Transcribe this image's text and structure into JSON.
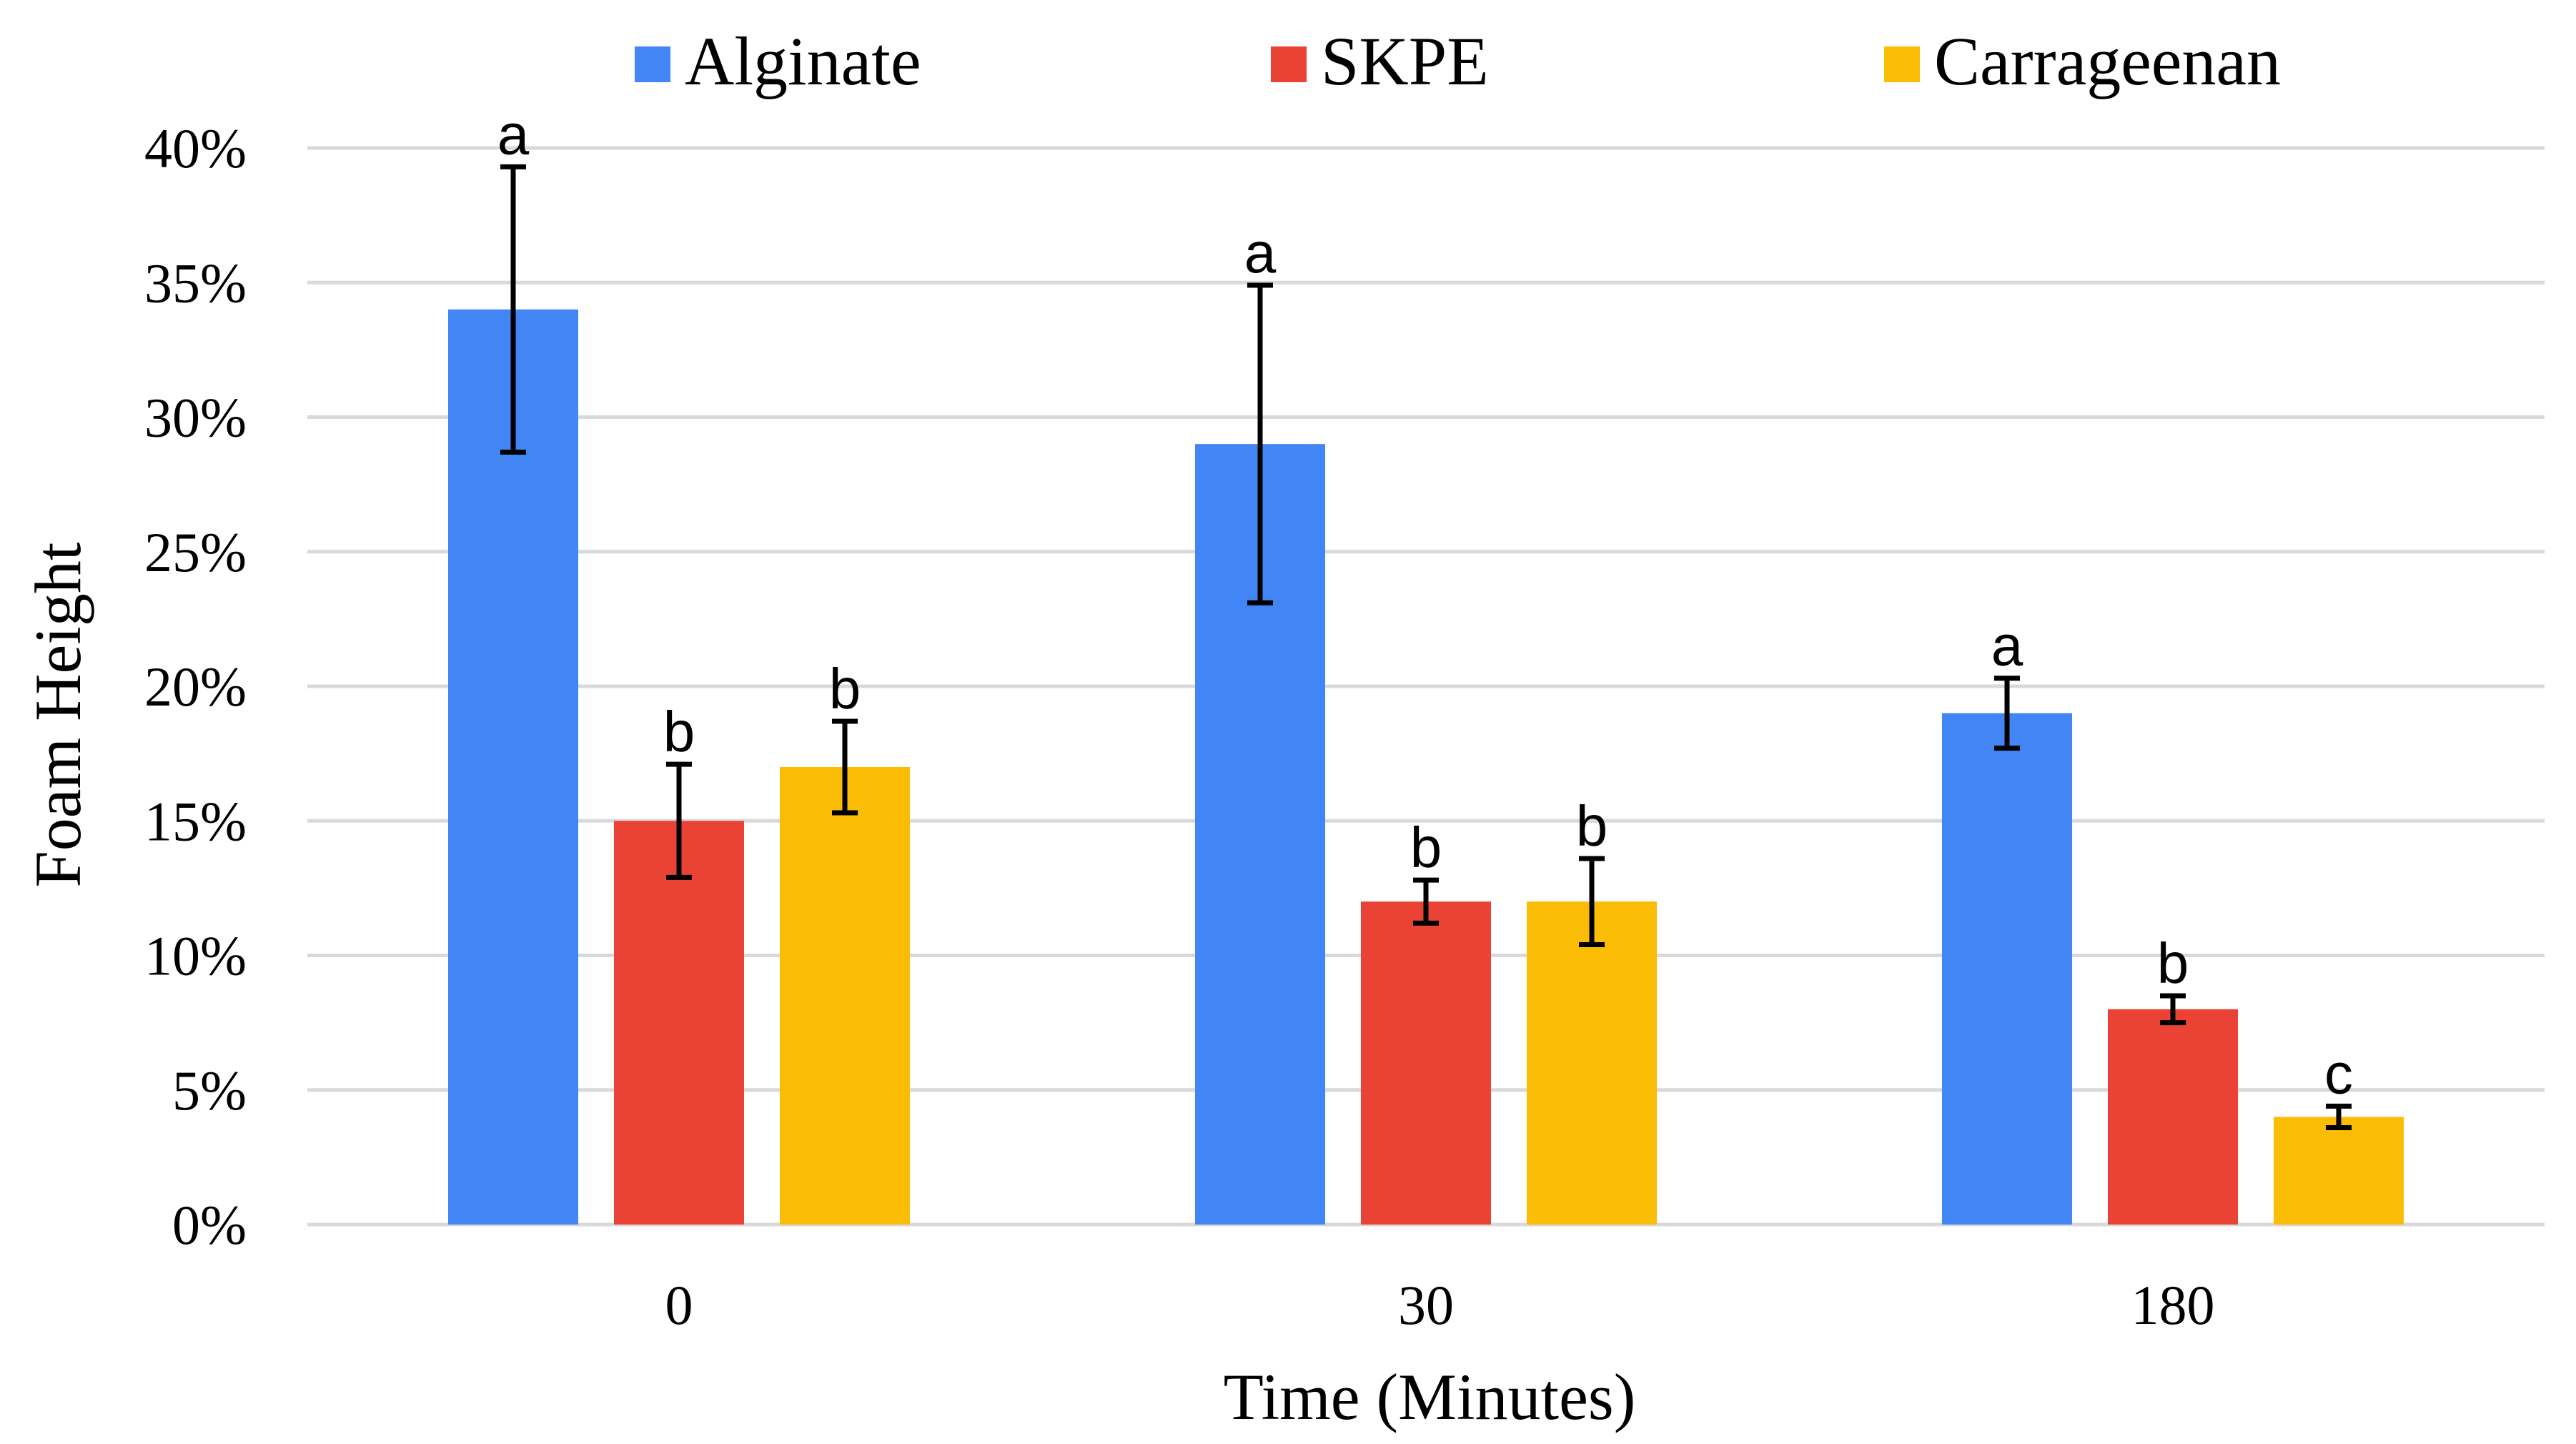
{
  "chart_data": {
    "type": "bar",
    "categories": [
      "0",
      "30",
      "180"
    ],
    "series": [
      {
        "name": "Alginate",
        "color": "#4285f4",
        "values": [
          34,
          29,
          19
        ],
        "errors": [
          5.3,
          5.9,
          1.3
        ],
        "letters": [
          "a",
          "a",
          "a"
        ]
      },
      {
        "name": "SKPE",
        "color": "#ea4335",
        "values": [
          15,
          12,
          8
        ],
        "errors": [
          2.1,
          0.8,
          0.5
        ],
        "letters": [
          "b",
          "b",
          "b"
        ]
      },
      {
        "name": "Carrageenan",
        "color": "#fbbc05",
        "values": [
          17,
          12,
          4
        ],
        "errors": [
          1.7,
          1.6,
          0.4
        ],
        "letters": [
          "b",
          "b",
          "c"
        ]
      }
    ],
    "xlabel": "Time (Minutes)",
    "ylabel": "Foam Height",
    "ylim": [
      0,
      40
    ],
    "yticks": [
      {
        "value": 0,
        "label": "0%"
      },
      {
        "value": 5,
        "label": "5%"
      },
      {
        "value": 10,
        "label": "10%"
      },
      {
        "value": 15,
        "label": "15%"
      },
      {
        "value": 20,
        "label": "20%"
      },
      {
        "value": 25,
        "label": "25%"
      },
      {
        "value": 30,
        "label": "30%"
      },
      {
        "value": 35,
        "label": "35%"
      },
      {
        "value": 40,
        "label": "40%"
      }
    ],
    "grid": true,
    "legend_position": "top"
  }
}
